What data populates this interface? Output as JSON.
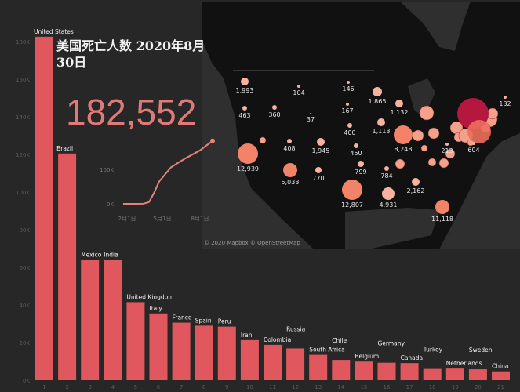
{
  "title": "美国死亡人数 2020年8月30日",
  "headline_value": "182,552",
  "map_attribution": "© 2020 Mapbox © OpenStreetMap",
  "colors": {
    "bar": "#e0585e",
    "background": "#272727",
    "line": "#e8807c",
    "bubble": "#f4a08a",
    "bubble_max": "#b5173f"
  },
  "chart_data": [
    {
      "type": "bar",
      "title": "",
      "xlabel": "",
      "ylabel": "",
      "ylim": [
        0,
        185000
      ],
      "yticks": [
        "0K",
        "20K",
        "40K",
        "60K",
        "80K",
        "100K",
        "120K",
        "140K",
        "160K",
        "180K"
      ],
      "grid": false,
      "categories": [
        "1",
        "2",
        "3",
        "4",
        "5",
        "6",
        "7",
        "8",
        "9",
        "10",
        "11",
        "12",
        "13",
        "14",
        "15",
        "16",
        "17",
        "18",
        "19",
        "20",
        "21"
      ],
      "labels": [
        "United States",
        "Brazil",
        "Mexico",
        "India",
        "United Kingdom",
        "Italy",
        "France",
        "Spain",
        "Peru",
        "Iran",
        "Colombia",
        "Russia",
        "South Africa",
        "Chile",
        "Belgium",
        "Germany",
        "Canada",
        "Turkey",
        "Netherlands",
        "Sweden",
        "China"
      ],
      "values": [
        182552,
        120500,
        64000,
        64000,
        41500,
        35500,
        30600,
        29000,
        28500,
        21300,
        18800,
        16900,
        13500,
        10800,
        9900,
        9300,
        9100,
        6000,
        6200,
        5800,
        4700
      ]
    },
    {
      "type": "line",
      "title": "",
      "yticks": [
        "0K",
        "100K"
      ],
      "xticks": [
        "2月1日",
        "5月1日",
        "8月1日"
      ],
      "ylim": [
        0,
        200000
      ],
      "x": [
        "2月1日",
        "3月1日",
        "3月20日",
        "4月1日",
        "4月15日",
        "5月1日",
        "6月1日",
        "7月1日",
        "8月1日",
        "8月30日"
      ],
      "y": [
        0,
        1,
        300,
        5000,
        30000,
        65000,
        106000,
        130000,
        155000,
        182552
      ]
    },
    {
      "type": "scatter",
      "title": "",
      "bubble_labels": [
        "1,993",
        "104",
        "146",
        "1,865",
        "463",
        "360",
        "37",
        "167",
        "1,132",
        "400",
        "1,113",
        "8,248",
        "408",
        "1,945",
        "450",
        "12,939",
        "5,033",
        "770",
        "799",
        "784",
        "12,807",
        "4,931",
        "2,162",
        "11,118",
        "213",
        "604",
        "132"
      ]
    }
  ]
}
